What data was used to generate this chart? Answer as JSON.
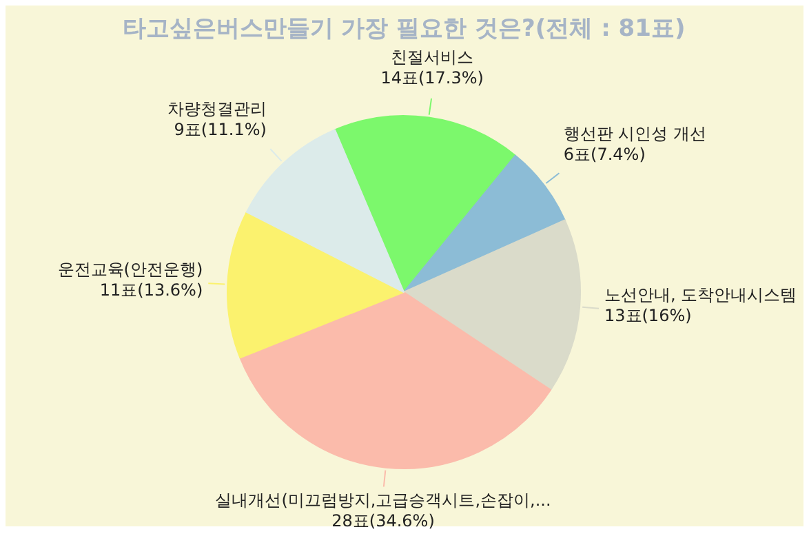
{
  "chart_data": {
    "type": "pie",
    "title": "타고싶은버스만들기 가장 필요한 것은?(전체 : 81표)",
    "categories": [
      "친절서비스",
      "행선판 시인성 개선",
      "노선안내, 도착안내시스템",
      "실내개선(미끄럼방지,고급승객시트,손잡이,...",
      "운전교육(안전운행)",
      "차량청결관리"
    ],
    "values": [
      14,
      6,
      13,
      28,
      11,
      9
    ],
    "value_labels": [
      "14표(17.3%)",
      "6표(7.4%)",
      "13표(16%)",
      "28표(34.6%)",
      "11표(13.6%)",
      "9표(11.1%)"
    ],
    "colors": [
      "#7cf86c",
      "#8cbcd6",
      "#dadbca",
      "#fbbbab",
      "#fbf26e",
      "#dcebea"
    ]
  }
}
